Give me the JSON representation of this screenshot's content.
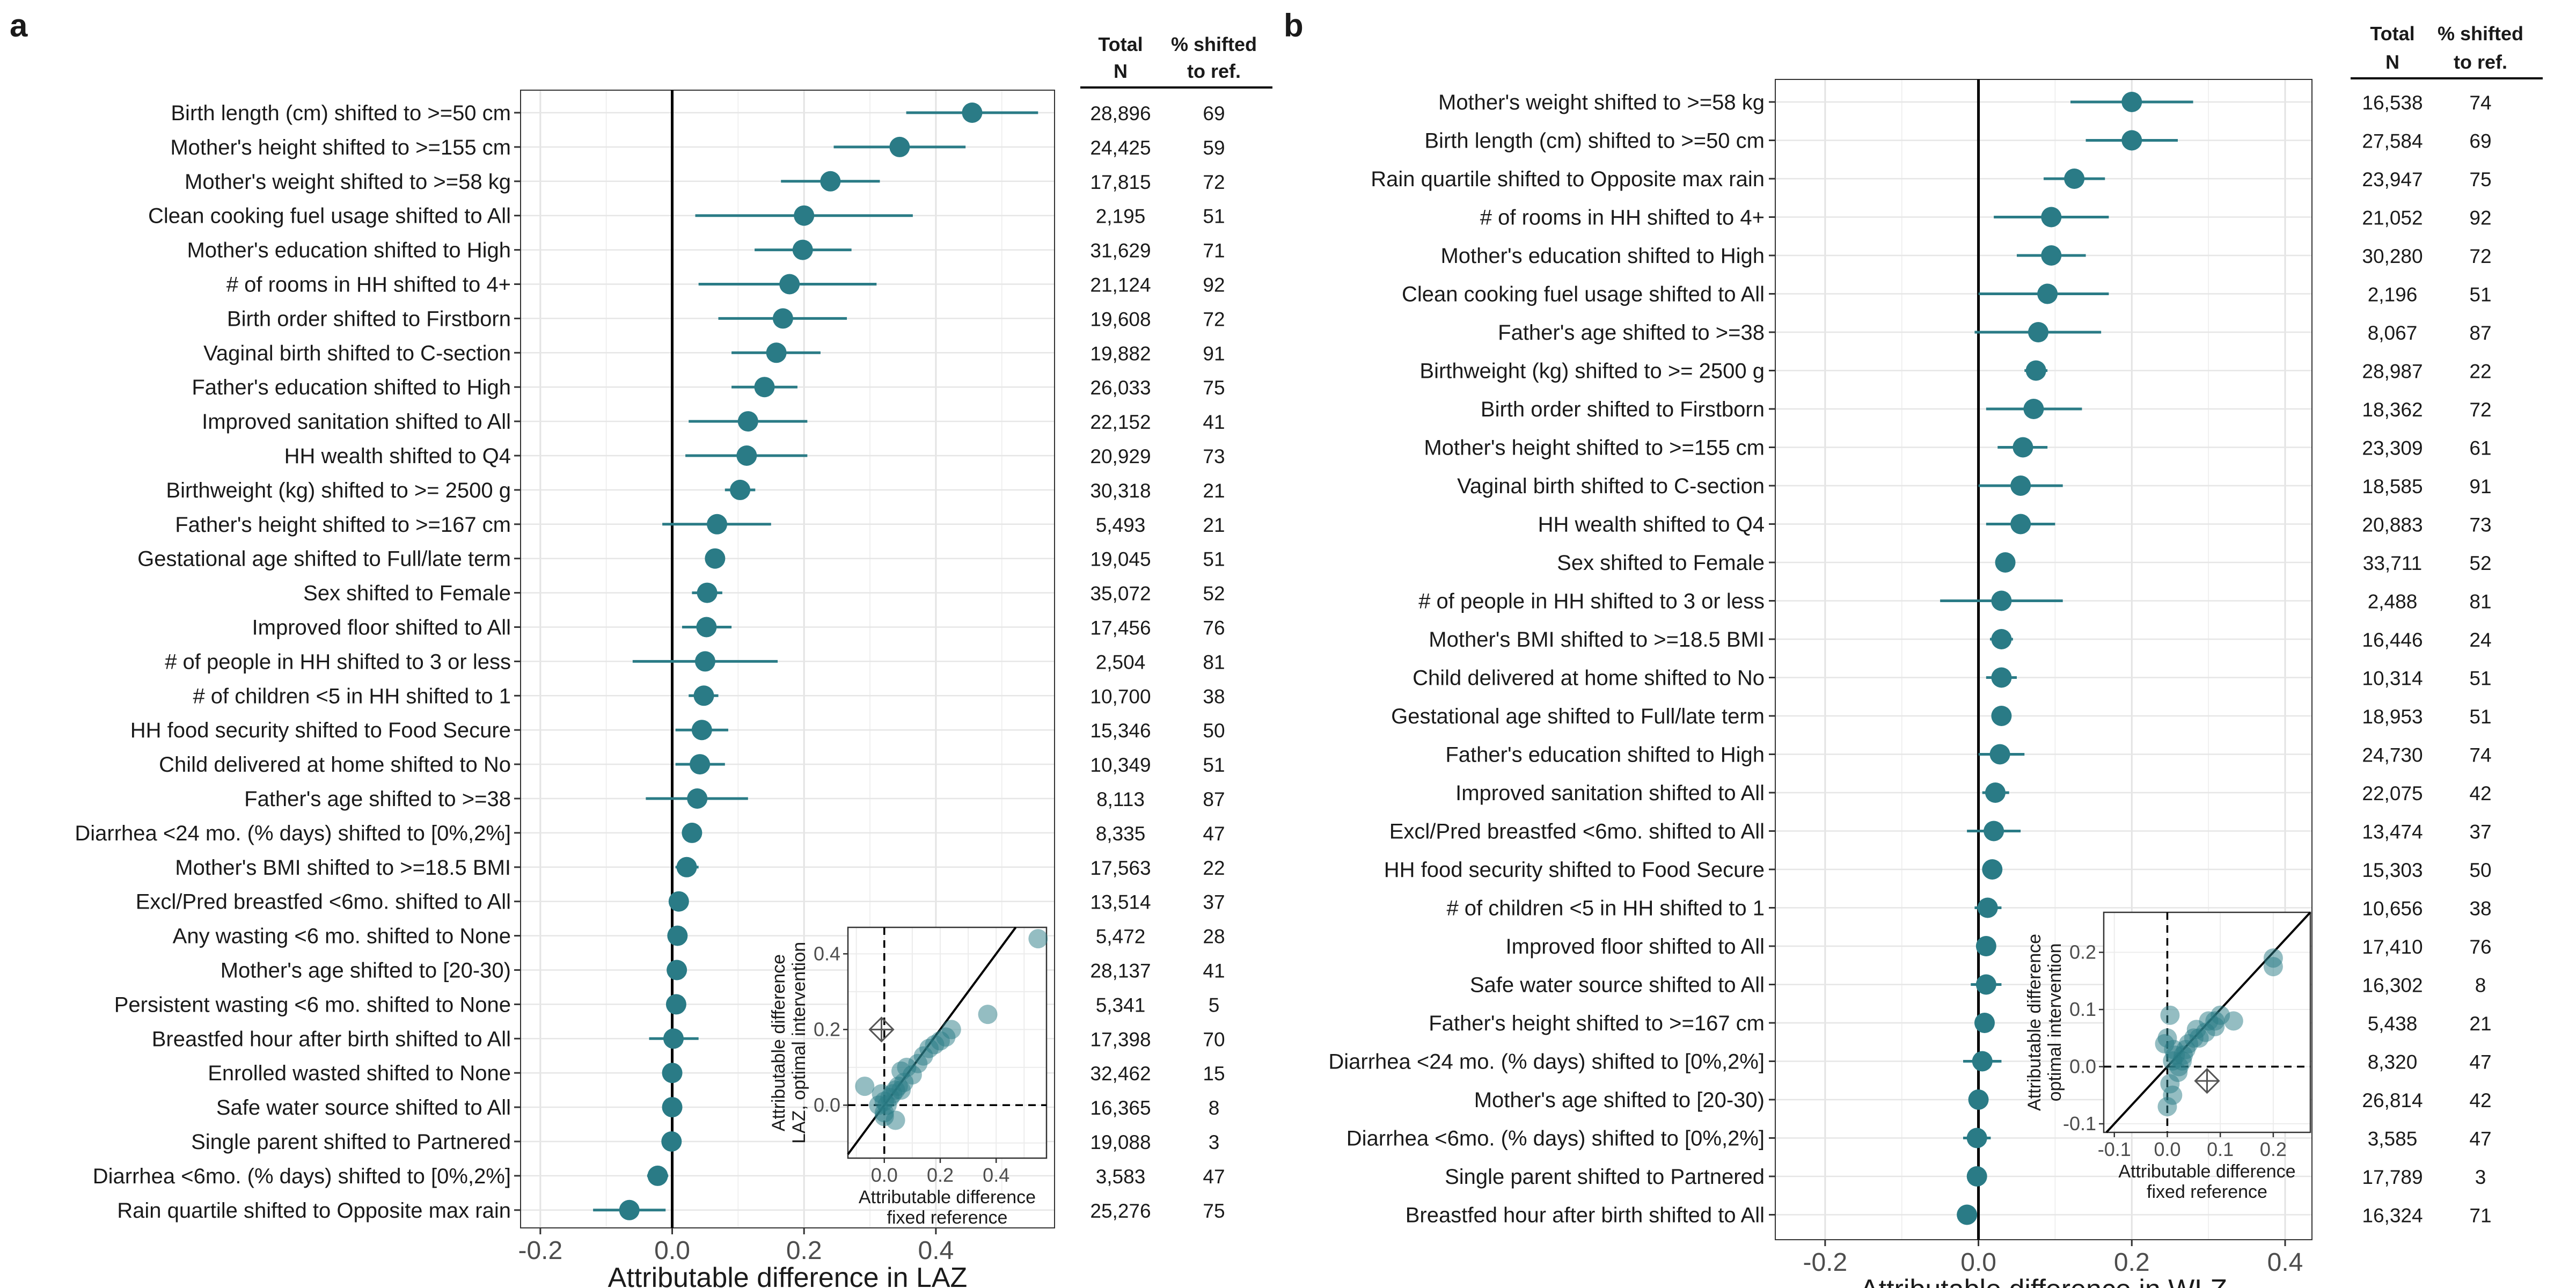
{
  "chart_data": [
    {
      "type": "scatter",
      "panel_label": "a",
      "xlabel": "Attributable difference in LAZ",
      "xlim": [
        -0.23,
        0.58
      ],
      "xticks": [
        -0.2,
        0.0,
        0.2,
        0.4
      ],
      "xtick_labels": [
        "-0.2",
        "0.0",
        "0.2",
        "0.4"
      ],
      "grid": true,
      "point_color": "#2a7b86",
      "table_headers": {
        "n_line1": "Total",
        "n_line2": "N",
        "pct_line1": "% shifted",
        "pct_line2": "to ref."
      },
      "rows": [
        {
          "label": "Birth length (cm) shifted to >=50 cm",
          "est": 0.455,
          "lo": 0.355,
          "hi": 0.555,
          "n": "28,896",
          "pct": "69"
        },
        {
          "label": "Mother's height shifted to >=155 cm",
          "est": 0.345,
          "lo": 0.245,
          "hi": 0.445,
          "n": "24,425",
          "pct": "59"
        },
        {
          "label": "Mother's weight shifted to >=58 kg",
          "est": 0.24,
          "lo": 0.165,
          "hi": 0.315,
          "n": "17,815",
          "pct": "72"
        },
        {
          "label": "Clean cooking fuel usage shifted to All",
          "est": 0.2,
          "lo": 0.035,
          "hi": 0.365,
          "n": "2,195",
          "pct": "51"
        },
        {
          "label": "Mother's education shifted to High",
          "est": 0.198,
          "lo": 0.125,
          "hi": 0.272,
          "n": "31,629",
          "pct": "71"
        },
        {
          "label": "# of rooms in HH shifted to 4+",
          "est": 0.178,
          "lo": 0.04,
          "hi": 0.31,
          "n": "21,124",
          "pct": "92"
        },
        {
          "label": "Birth order shifted to Firstborn",
          "est": 0.168,
          "lo": 0.07,
          "hi": 0.265,
          "n": "19,608",
          "pct": "72"
        },
        {
          "label": "Vaginal birth shifted to C-section",
          "est": 0.158,
          "lo": 0.09,
          "hi": 0.225,
          "n": "19,882",
          "pct": "91"
        },
        {
          "label": "Father's education shifted to High",
          "est": 0.14,
          "lo": 0.09,
          "hi": 0.19,
          "n": "26,033",
          "pct": "75"
        },
        {
          "label": "Improved sanitation shifted to All",
          "est": 0.115,
          "lo": 0.025,
          "hi": 0.205,
          "n": "22,152",
          "pct": "41"
        },
        {
          "label": "HH wealth shifted to Q4",
          "est": 0.113,
          "lo": 0.02,
          "hi": 0.205,
          "n": "20,929",
          "pct": "73"
        },
        {
          "label": "Birthweight (kg) shifted to >= 2500 g",
          "est": 0.103,
          "lo": 0.08,
          "hi": 0.126,
          "n": "30,318",
          "pct": "21"
        },
        {
          "label": "Father's height shifted to >=167 cm",
          "est": 0.068,
          "lo": -0.015,
          "hi": 0.15,
          "n": "5,493",
          "pct": "21"
        },
        {
          "label": "Gestational age shifted to Full/late term",
          "est": 0.065,
          "lo": 0.055,
          "hi": 0.075,
          "n": "19,045",
          "pct": "51"
        },
        {
          "label": "Sex shifted to Female",
          "est": 0.053,
          "lo": 0.03,
          "hi": 0.076,
          "n": "35,072",
          "pct": "52"
        },
        {
          "label": "Improved floor shifted to All",
          "est": 0.052,
          "lo": 0.015,
          "hi": 0.09,
          "n": "17,456",
          "pct": "76"
        },
        {
          "label": "# of people in HH shifted to 3 or less",
          "est": 0.05,
          "lo": -0.06,
          "hi": 0.16,
          "n": "2,504",
          "pct": "81"
        },
        {
          "label": "# of children <5 in HH shifted to 1",
          "est": 0.048,
          "lo": 0.025,
          "hi": 0.07,
          "n": "10,700",
          "pct": "38"
        },
        {
          "label": "HH food security shifted to Food Secure",
          "est": 0.045,
          "lo": 0.005,
          "hi": 0.085,
          "n": "15,346",
          "pct": "50"
        },
        {
          "label": "Child delivered at home shifted to No",
          "est": 0.042,
          "lo": 0.005,
          "hi": 0.08,
          "n": "10,349",
          "pct": "51"
        },
        {
          "label": "Father's age shifted to >=38",
          "est": 0.038,
          "lo": -0.04,
          "hi": 0.115,
          "n": "8,113",
          "pct": "87"
        },
        {
          "label": "Diarrhea <24 mo.  (% days) shifted to [0%,2%]",
          "est": 0.03,
          "lo": 0.015,
          "hi": 0.045,
          "n": "8,335",
          "pct": "47"
        },
        {
          "label": "Mother's BMI shifted to >=18.5 BMI",
          "est": 0.022,
          "lo": 0.005,
          "hi": 0.04,
          "n": "17,563",
          "pct": "22"
        },
        {
          "label": "Excl/Pred breastfed <6mo. shifted to All",
          "est": 0.01,
          "lo": 0.0,
          "hi": 0.02,
          "n": "13,514",
          "pct": "37"
        },
        {
          "label": "Any wasting  <6 mo. shifted to None",
          "est": 0.008,
          "lo": 0.0,
          "hi": 0.016,
          "n": "5,472",
          "pct": "28"
        },
        {
          "label": "Mother's age shifted to [20-30)",
          "est": 0.007,
          "lo": -0.003,
          "hi": 0.017,
          "n": "28,137",
          "pct": "41"
        },
        {
          "label": "Persistent wasting  <6 mo. shifted to None",
          "est": 0.006,
          "lo": 0.0,
          "hi": 0.012,
          "n": "5,341",
          "pct": "5"
        },
        {
          "label": "Breastfed hour after birth shifted to All",
          "est": 0.002,
          "lo": -0.035,
          "hi": 0.04,
          "n": "17,398",
          "pct": "70"
        },
        {
          "label": "Enrolled wasted shifted to None",
          "est": 0.0,
          "lo": -0.006,
          "hi": 0.006,
          "n": "32,462",
          "pct": "15"
        },
        {
          "label": "Safe water source shifted to All",
          "est": 0.0,
          "lo": -0.01,
          "hi": 0.01,
          "n": "16,365",
          "pct": "8"
        },
        {
          "label": "Single parent shifted to Partnered",
          "est": -0.001,
          "lo": -0.008,
          "hi": 0.006,
          "n": "19,088",
          "pct": "3"
        },
        {
          "label": "Diarrhea <6mo. (% days) shifted to [0%,2%]",
          "est": -0.022,
          "lo": -0.038,
          "hi": -0.006,
          "n": "3,583",
          "pct": "47"
        },
        {
          "label": "Rain quartile shifted to Opposite max rain",
          "est": -0.065,
          "lo": -0.12,
          "hi": -0.01,
          "n": "25,276",
          "pct": "75"
        }
      ],
      "inset": {
        "type": "scatter",
        "xlabel_line1": "Attributable difference",
        "xlabel_line2": "fixed reference",
        "ylabel_line1": "Attributable difference",
        "ylabel_line2": "LAZ, optimal intervention",
        "xlim": [
          -0.13,
          0.58
        ],
        "ylim": [
          -0.14,
          0.47
        ],
        "xticks": [
          0.0,
          0.2,
          0.4
        ],
        "xtick_labels": [
          "0.0",
          "0.2",
          "0.4"
        ],
        "yticks": [
          0.0,
          0.2,
          0.4
        ],
        "ytick_labels": [
          "0.0",
          "0.2",
          "0.4"
        ],
        "diamond": {
          "x": -0.01,
          "y": 0.2
        },
        "points": [
          {
            "x": 0.55,
            "y": 0.44
          },
          {
            "x": 0.37,
            "y": 0.24
          },
          {
            "x": 0.24,
            "y": 0.2
          },
          {
            "x": 0.22,
            "y": 0.18
          },
          {
            "x": 0.2,
            "y": 0.17
          },
          {
            "x": 0.18,
            "y": 0.16
          },
          {
            "x": 0.16,
            "y": 0.15
          },
          {
            "x": 0.14,
            "y": 0.13
          },
          {
            "x": 0.12,
            "y": 0.11
          },
          {
            "x": 0.1,
            "y": 0.08
          },
          {
            "x": 0.08,
            "y": 0.1
          },
          {
            "x": 0.07,
            "y": 0.06
          },
          {
            "x": 0.06,
            "y": 0.09
          },
          {
            "x": 0.05,
            "y": 0.05
          },
          {
            "x": 0.04,
            "y": 0.04
          },
          {
            "x": 0.03,
            "y": 0.03
          },
          {
            "x": 0.02,
            "y": 0.02
          },
          {
            "x": 0.01,
            "y": 0.0
          },
          {
            "x": 0.0,
            "y": 0.01
          },
          {
            "x": 0.0,
            "y": -0.03
          },
          {
            "x": -0.01,
            "y": 0.03
          },
          {
            "x": -0.02,
            "y": 0.0
          },
          {
            "x": 0.04,
            "y": -0.04
          },
          {
            "x": -0.07,
            "y": 0.05
          },
          {
            "x": 0.06,
            "y": 0.04
          },
          {
            "x": 0.0,
            "y": -0.02
          }
        ]
      }
    },
    {
      "type": "scatter",
      "panel_label": "b",
      "xlabel": "Attributable difference in WLZ",
      "xlim": [
        -0.265,
        0.435
      ],
      "xticks": [
        -0.2,
        0.0,
        0.2,
        0.4
      ],
      "xtick_labels": [
        "-0.2",
        "0.0",
        "0.2",
        "0.4"
      ],
      "grid": true,
      "point_color": "#2a7b86",
      "table_headers": {
        "n_line1": "Total",
        "n_line2": "N",
        "pct_line1": "% shifted",
        "pct_line2": "to ref."
      },
      "rows": [
        {
          "label": "Mother's weight shifted to >=58 kg",
          "est": 0.2,
          "lo": 0.12,
          "hi": 0.28,
          "n": "16,538",
          "pct": "74"
        },
        {
          "label": "Birth length (cm) shifted to >=50 cm",
          "est": 0.2,
          "lo": 0.14,
          "hi": 0.26,
          "n": "27,584",
          "pct": "69"
        },
        {
          "label": "Rain quartile shifted to Opposite max rain",
          "est": 0.125,
          "lo": 0.085,
          "hi": 0.165,
          "n": "23,947",
          "pct": "75"
        },
        {
          "label": "# of rooms in HH shifted to 4+",
          "est": 0.095,
          "lo": 0.02,
          "hi": 0.17,
          "n": "21,052",
          "pct": "92"
        },
        {
          "label": "Mother's education shifted to High",
          "est": 0.095,
          "lo": 0.05,
          "hi": 0.14,
          "n": "30,280",
          "pct": "72"
        },
        {
          "label": "Clean cooking fuel usage shifted to All",
          "est": 0.09,
          "lo": 0.0,
          "hi": 0.17,
          "n": "2,196",
          "pct": "51"
        },
        {
          "label": "Father's age shifted to >=38",
          "est": 0.078,
          "lo": -0.005,
          "hi": 0.16,
          "n": "8,067",
          "pct": "87"
        },
        {
          "label": "Birthweight (kg) shifted to >= 2500 g",
          "est": 0.075,
          "lo": 0.06,
          "hi": 0.09,
          "n": "28,987",
          "pct": "22"
        },
        {
          "label": "Birth order shifted to Firstborn",
          "est": 0.072,
          "lo": 0.01,
          "hi": 0.135,
          "n": "18,362",
          "pct": "72"
        },
        {
          "label": "Mother's height shifted to >=155 cm",
          "est": 0.058,
          "lo": 0.025,
          "hi": 0.09,
          "n": "23,309",
          "pct": "61"
        },
        {
          "label": "Vaginal birth shifted to C-section",
          "est": 0.055,
          "lo": 0.0,
          "hi": 0.11,
          "n": "18,585",
          "pct": "91"
        },
        {
          "label": "HH wealth shifted to Q4",
          "est": 0.055,
          "lo": 0.01,
          "hi": 0.1,
          "n": "20,883",
          "pct": "73"
        },
        {
          "label": "Sex shifted to Female",
          "est": 0.035,
          "lo": 0.025,
          "hi": 0.045,
          "n": "33,711",
          "pct": "52"
        },
        {
          "label": "# of people in HH shifted to 3 or less",
          "est": 0.03,
          "lo": -0.05,
          "hi": 0.11,
          "n": "2,488",
          "pct": "81"
        },
        {
          "label": "Mother's BMI shifted to >=18.5 BMI",
          "est": 0.03,
          "lo": 0.015,
          "hi": 0.045,
          "n": "16,446",
          "pct": "24"
        },
        {
          "label": "Child delivered at home shifted to No",
          "est": 0.03,
          "lo": 0.01,
          "hi": 0.05,
          "n": "10,314",
          "pct": "51"
        },
        {
          "label": "Gestational age shifted to Full/late term",
          "est": 0.03,
          "lo": 0.02,
          "hi": 0.04,
          "n": "18,953",
          "pct": "51"
        },
        {
          "label": "Father's education shifted to High",
          "est": 0.028,
          "lo": 0.0,
          "hi": 0.06,
          "n": "24,730",
          "pct": "74"
        },
        {
          "label": "Improved sanitation shifted to All",
          "est": 0.022,
          "lo": 0.005,
          "hi": 0.04,
          "n": "22,075",
          "pct": "42"
        },
        {
          "label": "Excl/Pred breastfed <6mo. shifted to All",
          "est": 0.02,
          "lo": -0.015,
          "hi": 0.055,
          "n": "13,474",
          "pct": "37"
        },
        {
          "label": "HH food security shifted to Food Secure",
          "est": 0.018,
          "lo": 0.005,
          "hi": 0.03,
          "n": "15,303",
          "pct": "50"
        },
        {
          "label": "# of children <5 in HH shifted to 1",
          "est": 0.012,
          "lo": -0.005,
          "hi": 0.03,
          "n": "10,656",
          "pct": "38"
        },
        {
          "label": "Improved floor shifted to All",
          "est": 0.01,
          "lo": 0.0,
          "hi": 0.02,
          "n": "17,410",
          "pct": "76"
        },
        {
          "label": "Safe water source shifted to All",
          "est": 0.01,
          "lo": -0.01,
          "hi": 0.03,
          "n": "16,302",
          "pct": "8"
        },
        {
          "label": "Father's height shifted to >=167 cm",
          "est": 0.008,
          "lo": 0.0,
          "hi": 0.016,
          "n": "5,438",
          "pct": "21"
        },
        {
          "label": "Diarrhea <24 mo.  (% days) shifted to [0%,2%]",
          "est": 0.005,
          "lo": -0.02,
          "hi": 0.03,
          "n": "8,320",
          "pct": "47"
        },
        {
          "label": "Mother's age shifted to [20-30)",
          "est": 0.0,
          "lo": -0.005,
          "hi": 0.005,
          "n": "26,814",
          "pct": "42"
        },
        {
          "label": "Diarrhea <6mo. (% days) shifted to [0%,2%]",
          "est": -0.002,
          "lo": -0.02,
          "hi": 0.016,
          "n": "3,585",
          "pct": "47"
        },
        {
          "label": "Single parent shifted to Partnered",
          "est": -0.002,
          "lo": -0.01,
          "hi": 0.006,
          "n": "17,789",
          "pct": "3"
        },
        {
          "label": "Breastfed hour after birth shifted to All",
          "est": -0.015,
          "lo": -0.025,
          "hi": -0.005,
          "n": "16,324",
          "pct": "71"
        }
      ],
      "inset": {
        "type": "scatter",
        "xlabel_line1": "Attributable difference",
        "xlabel_line2": "fixed reference",
        "ylabel_line1": "Attributable difference",
        "ylabel_line2": "optimal intervention",
        "xlim": [
          -0.12,
          0.27
        ],
        "ylim": [
          -0.115,
          0.27
        ],
        "xticks": [
          -0.1,
          0.0,
          0.1,
          0.2
        ],
        "xtick_labels": [
          "-0.1",
          "0.0",
          "0.1",
          "0.2"
        ],
        "yticks": [
          -0.1,
          0.0,
          0.1,
          0.2
        ],
        "ytick_labels": [
          "-0.1",
          "0.0",
          "0.1",
          "0.2"
        ],
        "diamond": {
          "x": 0.075,
          "y": -0.025
        },
        "points": [
          {
            "x": 0.2,
            "y": 0.19
          },
          {
            "x": 0.2,
            "y": 0.175
          },
          {
            "x": 0.125,
            "y": 0.08
          },
          {
            "x": 0.1,
            "y": 0.09
          },
          {
            "x": 0.09,
            "y": 0.08
          },
          {
            "x": 0.09,
            "y": 0.07
          },
          {
            "x": 0.078,
            "y": 0.08
          },
          {
            "x": 0.072,
            "y": 0.06
          },
          {
            "x": 0.06,
            "y": 0.05
          },
          {
            "x": 0.055,
            "y": 0.065
          },
          {
            "x": 0.05,
            "y": 0.05
          },
          {
            "x": 0.04,
            "y": 0.04
          },
          {
            "x": 0.035,
            "y": 0.03
          },
          {
            "x": 0.03,
            "y": 0.02
          },
          {
            "x": 0.028,
            "y": 0.01
          },
          {
            "x": 0.022,
            "y": 0.0
          },
          {
            "x": 0.02,
            "y": -0.01
          },
          {
            "x": 0.015,
            "y": 0.02
          },
          {
            "x": 0.01,
            "y": 0.01
          },
          {
            "x": 0.005,
            "y": 0.09
          },
          {
            "x": 0.0,
            "y": 0.05
          },
          {
            "x": -0.005,
            "y": 0.04
          },
          {
            "x": 0.005,
            "y": -0.03
          },
          {
            "x": 0.0,
            "y": -0.07
          },
          {
            "x": 0.01,
            "y": -0.05
          },
          {
            "x": 0.012,
            "y": 0.03
          }
        ]
      }
    }
  ]
}
